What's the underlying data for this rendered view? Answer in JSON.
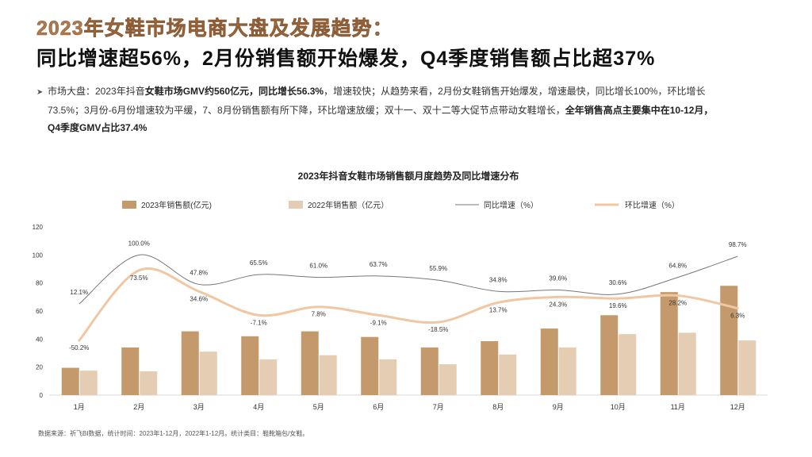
{
  "header": {
    "headline_line1": "2023年女鞋市场电商大盘及发展趋势：",
    "headline_line2": "同比增速超56%，2月份销售额开始爆发，Q4季度销售额占比超37%"
  },
  "summary": {
    "bullet": "➤",
    "p1": "市场大盘：2023年抖音",
    "p2": "女鞋市场GMV约560亿元，同比增长56.3%",
    "p3": "，增速较快；从趋势来看，2月份女鞋销售开始爆发，增速最快，同比增长100%，环比增长",
    "p4": "73.5%；3月份-6月份增速较为平缓，7、8月份销售额有所下降，环比增速放缓；双十一、双十二等大促节点带动女鞋增长，",
    "p5": "全年销售高点主要集中在10-12月，",
    "p6": "Q4季度GMV占比37.4%"
  },
  "source": "数据来源：祈飞BI数据，统计时间：2023年1-12月，2022年1-12月。统计类目：鞋靴箱包/女鞋。",
  "chart_data": {
    "type": "bar",
    "title": "2023年抖音女鞋市场销售额月度趋势及同比增速分布",
    "categories": [
      "1月",
      "2月",
      "3月",
      "4月",
      "5月",
      "6月",
      "7月",
      "8月",
      "9月",
      "10月",
      "11月",
      "12月"
    ],
    "ylim": [
      0,
      120
    ],
    "yticks": [
      0,
      20,
      40,
      60,
      80,
      100,
      120
    ],
    "legend": [
      "2023年销售额(亿元)",
      "2022年销售额（亿元）",
      "同比增速（%）",
      "环比增速（%）"
    ],
    "series": [
      {
        "name": "2023年销售额(亿元)",
        "kind": "bar",
        "color": "#c49a6c",
        "values": [
          19.5,
          34,
          45.5,
          42,
          45.5,
          41.5,
          34,
          38.5,
          47.5,
          57,
          73.5,
          78
        ]
      },
      {
        "name": "2022年销售额（亿元）",
        "kind": "bar",
        "color": "#e4cdb3",
        "values": [
          17.5,
          17,
          31,
          25.5,
          28.5,
          25.5,
          22,
          29,
          34,
          43.5,
          44.5,
          39
        ]
      },
      {
        "name": "同比增速（%）",
        "kind": "line",
        "color": "#777777",
        "values": [
          12.1,
          100.0,
          47.8,
          65.5,
          61.0,
          63.7,
          55.9,
          34.8,
          39.6,
          30.6,
          64.8,
          98.7
        ],
        "labels": [
          "12.1%",
          "100.0%",
          "47.8%",
          "65.5%",
          "61.0%",
          "63.7%",
          "55.9%",
          "34.8%",
          "39.6%",
          "30.6%",
          "64.8%",
          "98.7%"
        ],
        "plot_y": [
          65,
          100,
          79,
          86,
          84,
          85,
          82,
          74,
          75,
          72,
          84,
          99
        ]
      },
      {
        "name": "环比增速（%）",
        "kind": "line",
        "color": "#f1c7a3",
        "values": [
          -50.2,
          73.5,
          34.6,
          -7.1,
          7.8,
          -9.1,
          -18.5,
          13.7,
          24.3,
          19.6,
          28.2,
          6.3
        ],
        "labels": [
          "-50.2%",
          "73.5%",
          "34.6%",
          "-7.1%",
          "7.8%",
          "-9.1%",
          "-18.5%",
          "13.7%",
          "24.3%",
          "19.6%",
          "28.2%",
          "6.3%"
        ],
        "plot_y": [
          39,
          89,
          74,
          57,
          63,
          57,
          52,
          66,
          70,
          69,
          71,
          62
        ]
      }
    ]
  }
}
